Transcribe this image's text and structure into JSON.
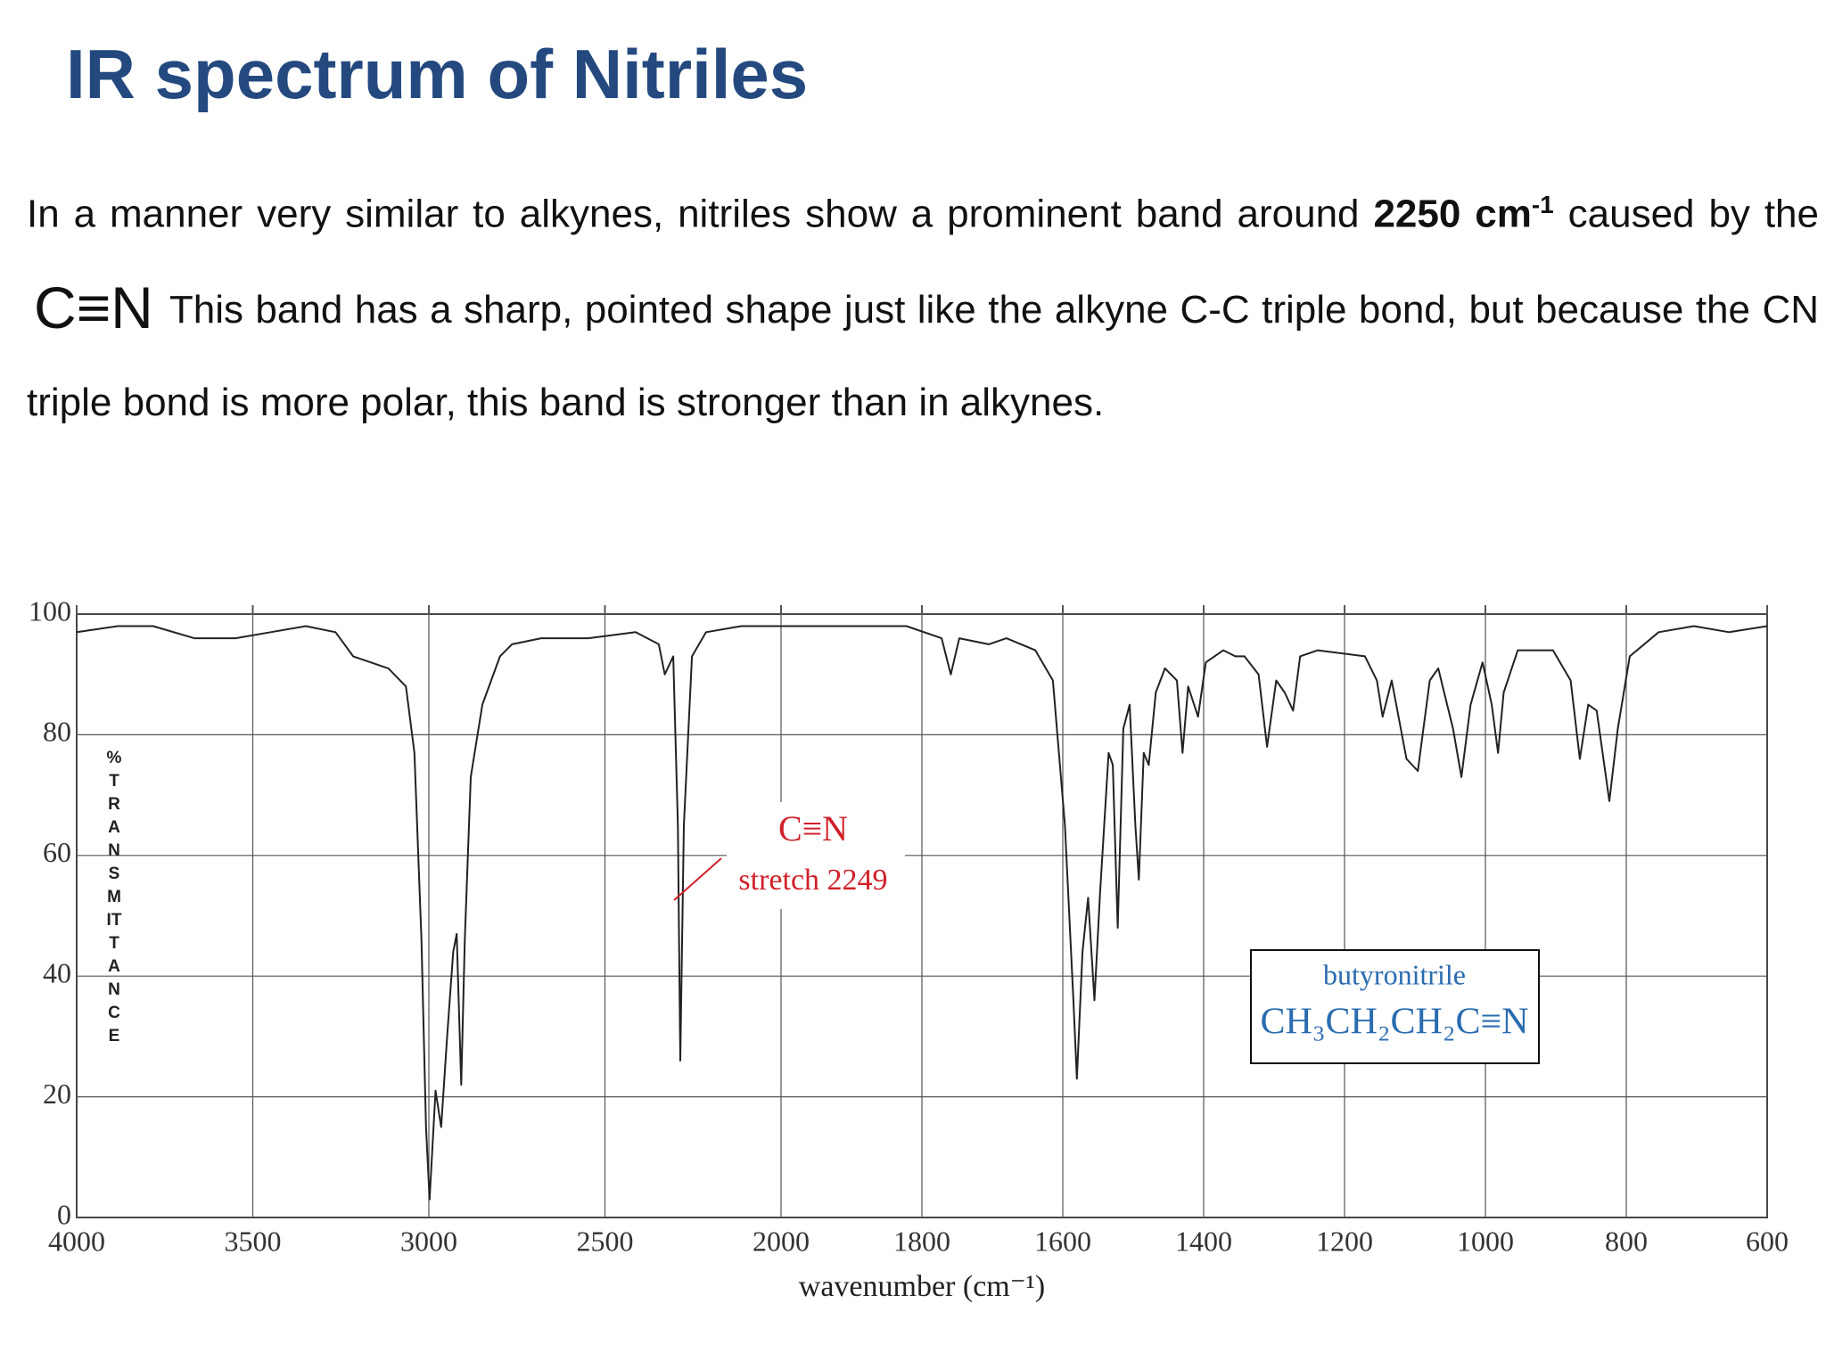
{
  "title": "IR spectrum of Nitriles",
  "paragraph": {
    "text1": "In a manner very similar to alkynes, nitriles show a prominent band around ",
    "bold": "2250 cm",
    "sup": "-1",
    "text2": " caused by the ",
    "bond": "C≡N",
    "text3": "This band has a sharp, pointed shape just like the alkyne C-C triple bond, but because the CN triple bond is more polar, this band is stronger than in alkynes."
  },
  "chart_data": {
    "type": "line",
    "x": [
      4000,
      3883,
      3783,
      3666,
      3549,
      3449,
      3349,
      3265,
      3215,
      3165,
      3115,
      3065,
      3041,
      3021,
      3008,
      2998,
      2981,
      2965,
      2948,
      2931,
      2921,
      2908,
      2898,
      2881,
      2848,
      2798,
      2764,
      2681,
      2547,
      2413,
      2347,
      2330,
      2306,
      2293,
      2286,
      2276,
      2253,
      2213,
      2113,
      1973,
      1889,
      1822,
      1772,
      1759,
      1747,
      1705,
      1680,
      1639,
      1614,
      1597,
      1585,
      1580,
      1572,
      1564,
      1555,
      1547,
      1535,
      1529,
      1522,
      1514,
      1505,
      1497,
      1492,
      1485,
      1478,
      1468,
      1455,
      1438,
      1430,
      1422,
      1408,
      1397,
      1372,
      1355,
      1342,
      1322,
      1310,
      1297,
      1285,
      1273,
      1263,
      1238,
      1171,
      1154,
      1146,
      1133,
      1112,
      1096,
      1079,
      1067,
      1046,
      1034,
      1021,
      1004,
      991,
      982,
      974,
      954,
      904,
      879,
      866,
      854,
      842,
      824,
      812,
      795,
      754,
      704,
      654,
      600
    ],
    "values": [
      97,
      98,
      98,
      96,
      96,
      97,
      98,
      97,
      93,
      92,
      91,
      88,
      77,
      46,
      15,
      3,
      21,
      15,
      30,
      44,
      47,
      22,
      46,
      73,
      85,
      93,
      95,
      96,
      96,
      97,
      95,
      90,
      93,
      65,
      26,
      65,
      93,
      97,
      98,
      98,
      98,
      98,
      96,
      90,
      96,
      95,
      96,
      94,
      89,
      65,
      36,
      23,
      44,
      53,
      36,
      54,
      77,
      75,
      48,
      81,
      85,
      65,
      56,
      77,
      75,
      87,
      91,
      89,
      77,
      88,
      83,
      92,
      94,
      93,
      93,
      90,
      78,
      89,
      87,
      84,
      93,
      94,
      93,
      89,
      83,
      89,
      76,
      74,
      89,
      91,
      81,
      73,
      85,
      92,
      85,
      77,
      87,
      94,
      94,
      89,
      76,
      85,
      84,
      69,
      81,
      93,
      97,
      98,
      97,
      98
    ],
    "color": "#222222",
    "xlim": [
      4000,
      600
    ],
    "xticks": [
      4000,
      3500,
      3000,
      2500,
      2000,
      1800,
      1600,
      1400,
      1200,
      1000,
      800,
      600
    ],
    "x_scale_break": {
      "at": 2000,
      "factor": 2
    },
    "ylim": [
      0,
      100
    ],
    "yticks": [
      0,
      20,
      40,
      60,
      80,
      100
    ],
    "grid": true,
    "xlabel": "wavenumber (cm⁻¹)",
    "ylabel": "%TRANSMITTANCE",
    "annotations": [
      {
        "text": "C≡N"
      },
      {
        "text": "stretch 2249"
      }
    ],
    "compound": {
      "name": "butyronitrile",
      "formula": "CH₃CH₂CH₂C≡N"
    }
  }
}
